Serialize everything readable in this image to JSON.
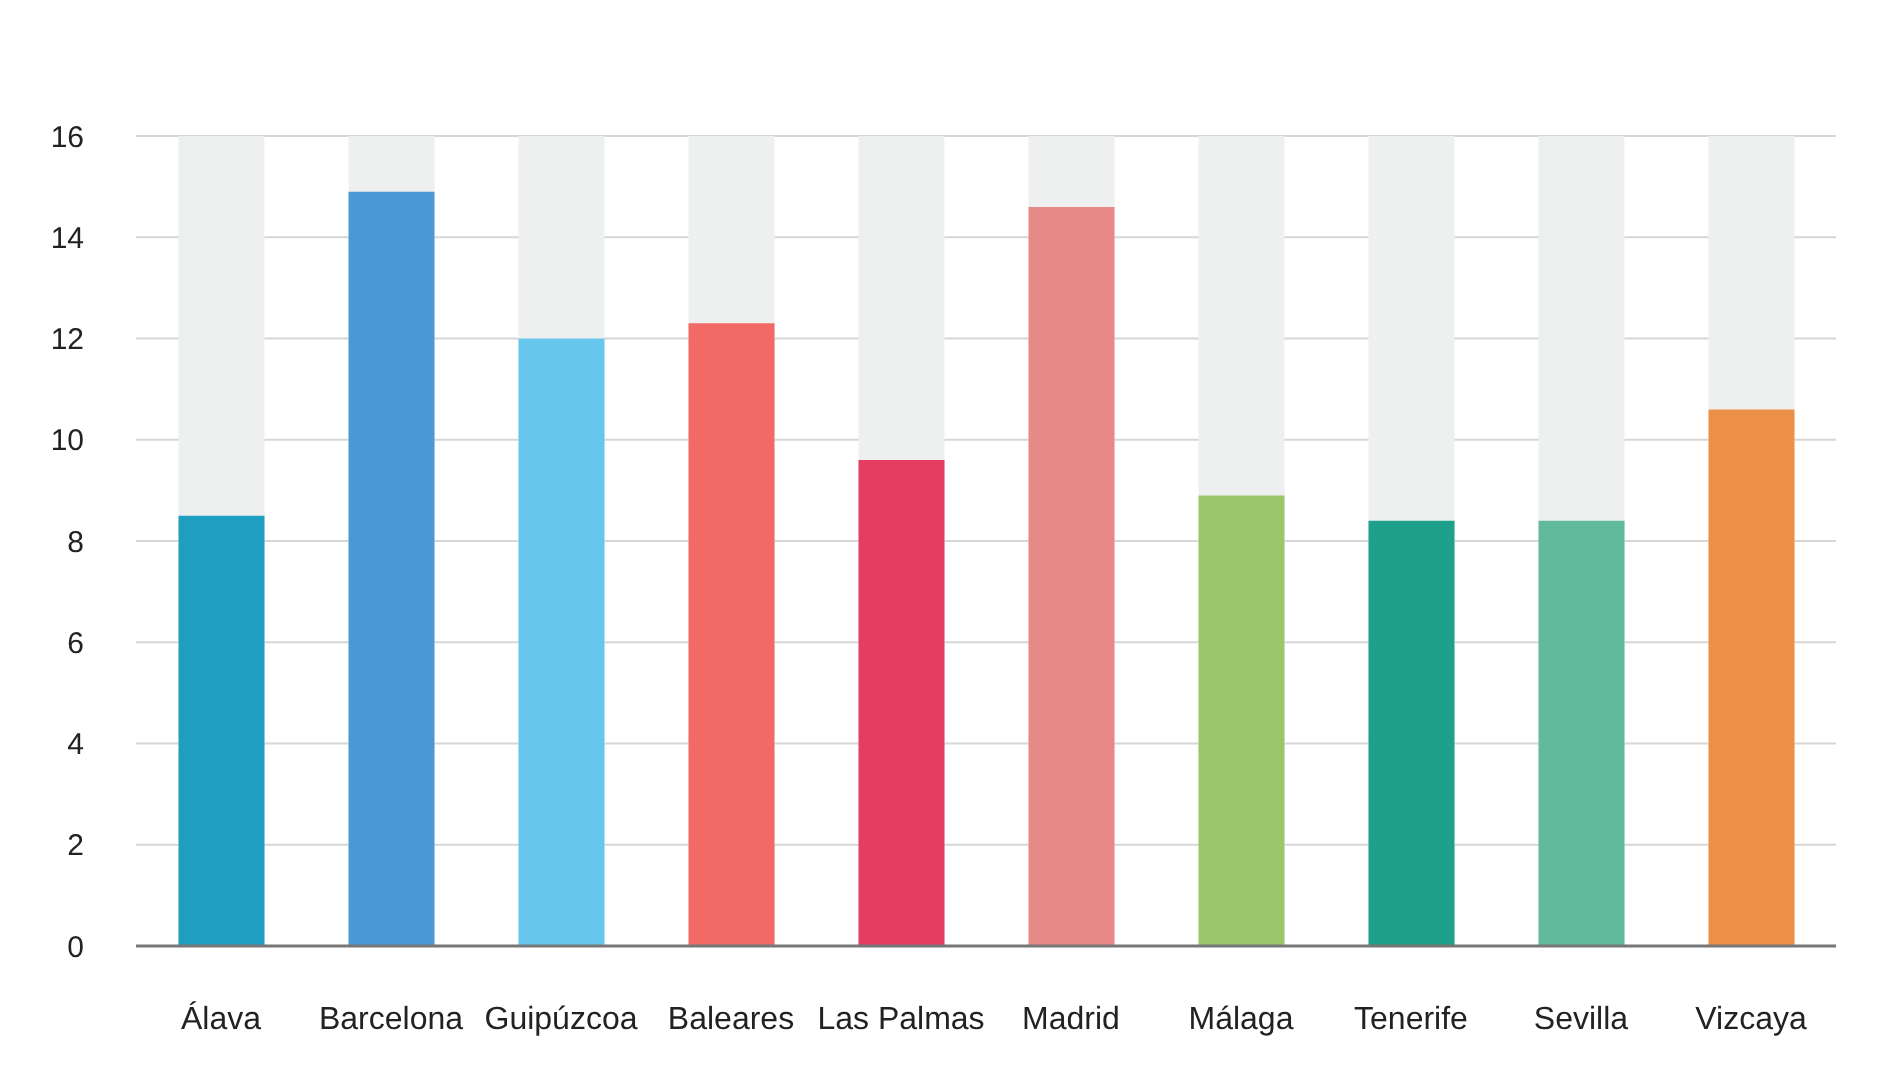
{
  "chart_data": {
    "type": "bar",
    "categories": [
      "Álava",
      "Barcelona",
      "Guipúzcoa",
      "Baleares",
      "Las Palmas",
      "Madrid",
      "Málaga",
      "Tenerife",
      "Sevilla",
      "Vizcaya"
    ],
    "values": [
      8.5,
      14.9,
      12.0,
      12.3,
      9.6,
      14.6,
      8.9,
      8.4,
      8.4,
      10.6
    ],
    "colors": [
      "#1e9fc0",
      "#4a99d4",
      "#67c6ec",
      "#f26a66",
      "#e53c62",
      "#e78987",
      "#9bc669",
      "#1fa08a",
      "#62ba9c",
      "#ec9047"
    ],
    "ylim": [
      0,
      16
    ],
    "yticks": [
      0,
      2,
      4,
      6,
      8,
      10,
      12,
      14,
      16
    ],
    "grid": "y"
  }
}
